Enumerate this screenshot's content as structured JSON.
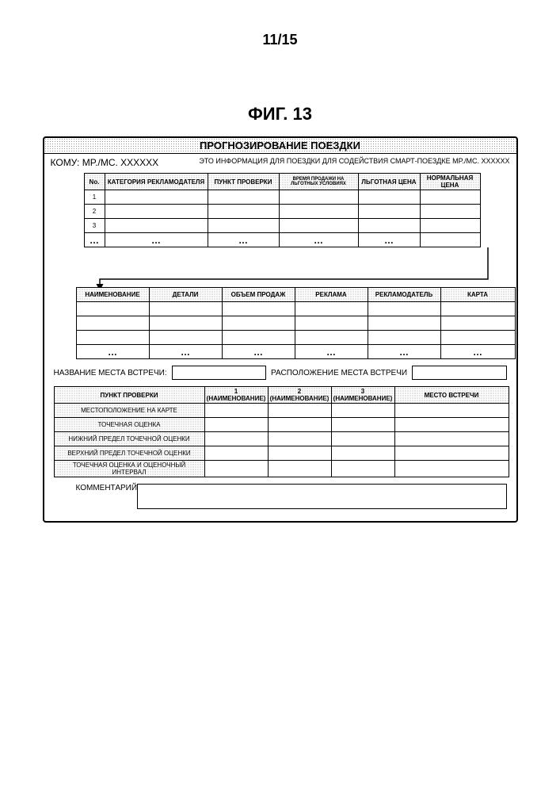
{
  "page_number": "11/15",
  "figure_title": "ФИГ. 13",
  "form": {
    "title": "ПРОГНОЗИРОВАНИЕ ПОЕЗДКИ",
    "to_label": "КОМУ: MP./МС. XXXXXX",
    "info_label": "ЭТО ИНФОРМАЦИЯ ДЛЯ ПОЕЗДКИ ДЛЯ СОДЕЙСТВИЯ СМАРТ-ПОЕЗДКЕ MP./МС. XXXXXX"
  },
  "table1": {
    "headers": [
      "No.",
      "КАТЕГОРИЯ РЕКЛАМОДАТЕЛЯ",
      "ПУНКТ ПРОВЕРКИ",
      "ВРЕМЯ ПРОДАЖИ НА ЛЬГОТНЫХ УСЛОВИЯХ",
      "ЛЬГОТНАЯ ЦЕНА",
      "НОРМАЛЬНАЯ ЦЕНА"
    ],
    "widths": [
      26,
      130,
      90,
      100,
      78,
      76
    ],
    "rows": [
      [
        "1",
        "",
        "",
        "",
        "",
        ""
      ],
      [
        "2",
        "",
        "",
        "",
        "",
        ""
      ],
      [
        "3",
        "",
        "",
        "",
        "",
        ""
      ],
      [
        "…",
        "…",
        "…",
        "…",
        "…",
        ""
      ]
    ]
  },
  "table2": {
    "headers": [
      "НАИМЕНОВАНИЕ",
      "ДЕТАЛИ",
      "ОБЪЕМ ПРОДАЖ",
      "РЕКЛАМА",
      "РЕКЛАМОДАТЕЛЬ",
      "КАРТА"
    ],
    "widths": [
      92,
      92,
      92,
      92,
      92,
      94
    ],
    "rows": [
      [
        "",
        "",
        "",
        "",
        "",
        ""
      ],
      [
        "",
        "",
        "",
        "",
        "",
        ""
      ],
      [
        "",
        "",
        "",
        "",
        "",
        ""
      ],
      [
        "…",
        "…",
        "…",
        "…",
        "…",
        "…"
      ]
    ]
  },
  "meeting": {
    "name_label": "НАЗВАНИЕ МЕСТА ВСТРЕЧИ:",
    "location_label": "РАСПОЛОЖЕНИЕ МЕСТА ВСТРЕЧИ"
  },
  "table3": {
    "col_headers": [
      "ПУНКТ ПРОВЕРКИ",
      "1 (НАИМЕНОВАНИЕ)",
      "2 (НАИМЕНОВАНИЕ)",
      "3 (НАИМЕНОВАНИЕ)",
      "МЕСТО ВСТРЕЧИ"
    ],
    "widths": [
      190,
      80,
      80,
      80,
      144
    ],
    "row_labels": [
      "МЕСТОПОЛОЖЕНИЕ НА КАРТЕ",
      "ТОЧЕЧНАЯ ОЦЕНКА",
      "НИЖНИЙ ПРЕДЕЛ ТОЧЕЧНОЙ ОЦЕНКИ",
      "ВЕРХНИЙ ПРЕДЕЛ ТОЧЕЧНОЙ ОЦЕНКИ",
      "ТОЧЕЧНАЯ ОЦЕНКА И ОЦЕНОЧНЫЙ ИНТЕРВАЛ"
    ]
  },
  "comment_label": "КОММЕНТАРИЙ"
}
